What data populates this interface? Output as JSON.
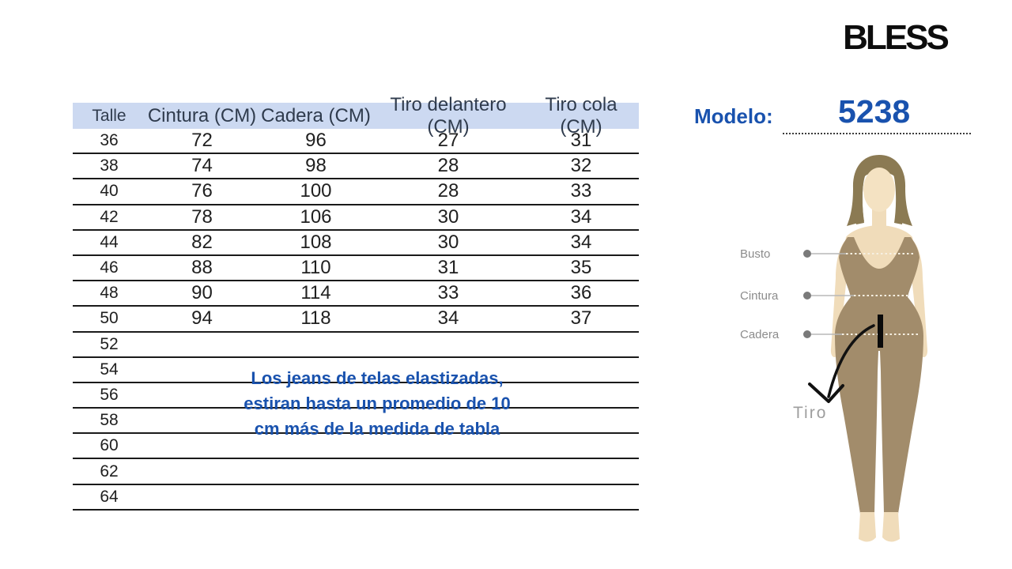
{
  "brand": {
    "logo_text": "BLESS"
  },
  "model": {
    "label": "Modelo:",
    "number": "5238"
  },
  "size_table": {
    "columns": [
      "Talle",
      "Cintura (CM)",
      "Cadera (CM)",
      "Tiro delantero (CM)",
      "Tiro cola (CM)"
    ],
    "column_keys": [
      "talle",
      "cintura",
      "cadera",
      "tiro_delantero",
      "tiro_cola"
    ],
    "rows": [
      {
        "talle": "36",
        "cintura": "72",
        "cadera": "96",
        "tiro_delantero": "27",
        "tiro_cola": "31"
      },
      {
        "talle": "38",
        "cintura": "74",
        "cadera": "98",
        "tiro_delantero": "28",
        "tiro_cola": "32"
      },
      {
        "talle": "40",
        "cintura": "76",
        "cadera": "100",
        "tiro_delantero": "28",
        "tiro_cola": "33"
      },
      {
        "talle": "42",
        "cintura": "78",
        "cadera": "106",
        "tiro_delantero": "30",
        "tiro_cola": "34"
      },
      {
        "talle": "44",
        "cintura": "82",
        "cadera": "108",
        "tiro_delantero": "30",
        "tiro_cola": "34"
      },
      {
        "talle": "46",
        "cintura": "88",
        "cadera": "110",
        "tiro_delantero": "31",
        "tiro_cola": "35"
      },
      {
        "talle": "48",
        "cintura": "90",
        "cadera": "114",
        "tiro_delantero": "33",
        "tiro_cola": "36"
      },
      {
        "talle": "50",
        "cintura": "94",
        "cadera": "118",
        "tiro_delantero": "34",
        "tiro_cola": "37"
      },
      {
        "talle": "52",
        "cintura": "",
        "cadera": "",
        "tiro_delantero": "",
        "tiro_cola": ""
      },
      {
        "talle": "54",
        "cintura": "",
        "cadera": "",
        "tiro_delantero": "",
        "tiro_cola": ""
      },
      {
        "talle": "56",
        "cintura": "",
        "cadera": "",
        "tiro_delantero": "",
        "tiro_cola": ""
      },
      {
        "talle": "58",
        "cintura": "",
        "cadera": "",
        "tiro_delantero": "",
        "tiro_cola": ""
      },
      {
        "talle": "60",
        "cintura": "",
        "cadera": "",
        "tiro_delantero": "",
        "tiro_cola": ""
      },
      {
        "talle": "62",
        "cintura": "",
        "cadera": "",
        "tiro_delantero": "",
        "tiro_cola": ""
      },
      {
        "talle": "64",
        "cintura": "",
        "cadera": "",
        "tiro_delantero": "",
        "tiro_cola": ""
      }
    ]
  },
  "note": {
    "lines": [
      "Los jeans de telas elastizadas,",
      "estiran hasta un promedio de 10",
      "cm más de la medida de tabla"
    ]
  },
  "figure": {
    "labels": {
      "busto": "Busto",
      "cintura": "Cintura",
      "cadera": "Cadera",
      "tiro": "Tiro"
    }
  },
  "colors": {
    "header_bg": "#ccd9f1",
    "header_text": "#2f3b4d",
    "accent_blue": "#1952ae",
    "line_color": "#1a1a1a",
    "label_gray": "#8c8c8c"
  }
}
